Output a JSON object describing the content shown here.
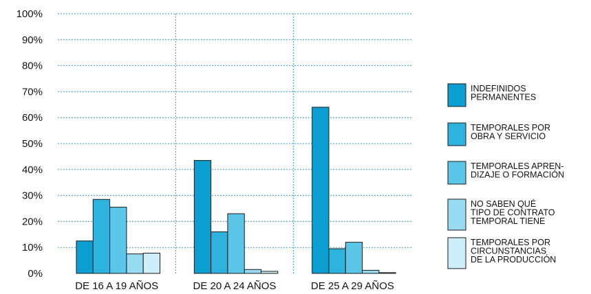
{
  "chart_data": {
    "type": "bar",
    "title": "",
    "xlabel": "",
    "ylabel": "",
    "ylim": [
      0,
      100
    ],
    "y_ticks": [
      "0%",
      "10%",
      "20%",
      "30%",
      "40%",
      "50%",
      "60%",
      "70%",
      "80%",
      "90%",
      "100%"
    ],
    "categories": [
      "DE 16 A 19 AÑOS",
      "DE 20 A 24 AÑOS",
      "DE 25 A 29 AÑOS"
    ],
    "grid": "dotted",
    "legend_position": "right",
    "series": [
      {
        "name": "INDEFINIDOS PERMANENTES",
        "legend_lines": [
          "INDEFINIDOS",
          "PERMANENTES"
        ],
        "color": "#0a9fd0",
        "values": [
          12.5,
          43.5,
          64
        ]
      },
      {
        "name": "TEMPORALES POR OBRA Y SERVICIO",
        "legend_lines": [
          "TEMPORALES POR",
          "OBRA Y SERVICIO"
        ],
        "color": "#2eb3df",
        "values": [
          28.5,
          16,
          9.5
        ]
      },
      {
        "name": "TEMPORALES APRENDIZAJE O FORMACIÓN",
        "legend_lines": [
          "TEMPORALES APREN-",
          "DIZAJE O FORMACIÓN"
        ],
        "color": "#5cc6e8",
        "values": [
          25.5,
          23,
          12
        ]
      },
      {
        "name": "NO SABEN QUÉ TIPO DE CONTRATO TEMPORAL TIENE",
        "legend_lines": [
          "NO SABEN QUÉ",
          "TIPO DE CONTRATO",
          "TEMPORAL TIENE"
        ],
        "color": "#97dbf2",
        "values": [
          7.5,
          1.5,
          1.2
        ]
      },
      {
        "name": "TEMPORALES POR CIRCUNSTANCIAS DE LA PRODUCCIÓN",
        "legend_lines": [
          "TEMPORALES POR",
          "CIRCUNSTANCIAS",
          "DE LA PRODUCCIÓN"
        ],
        "color": "#cdeefa",
        "values": [
          7.8,
          0.8,
          0.3
        ]
      }
    ]
  }
}
